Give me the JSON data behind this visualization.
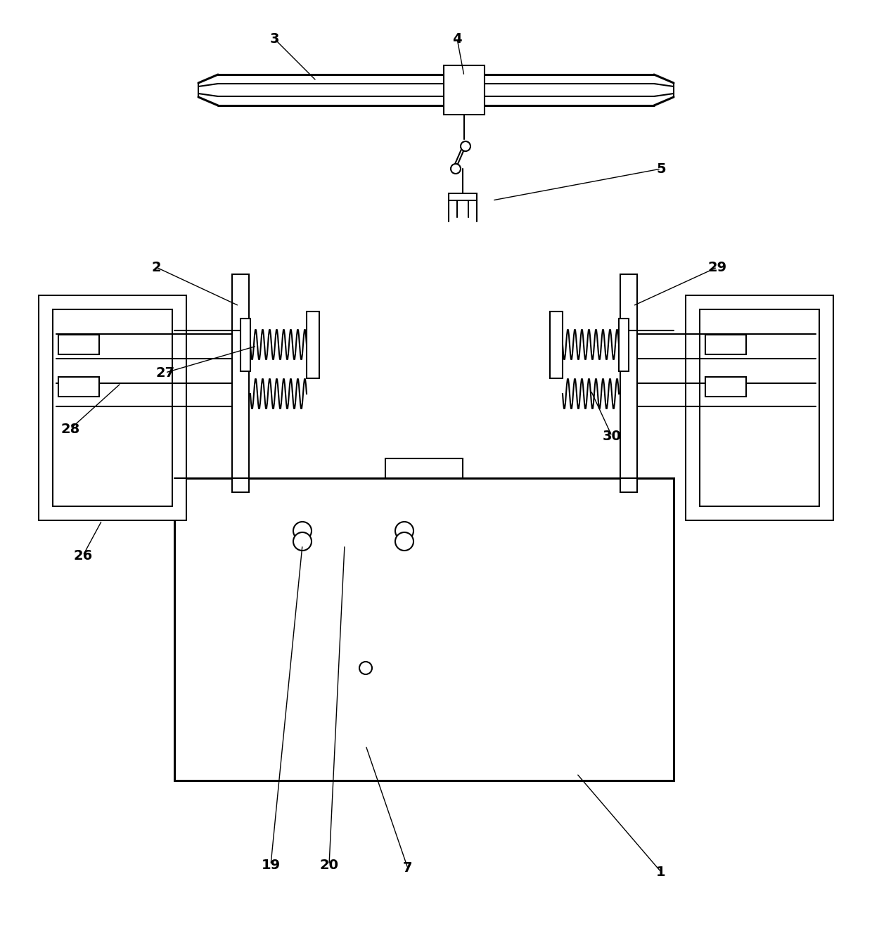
{
  "bg_color": "#ffffff",
  "lc": "#000000",
  "lw": 1.5,
  "tlw": 2.2,
  "fig_width": 12.4,
  "fig_height": 13.24
}
